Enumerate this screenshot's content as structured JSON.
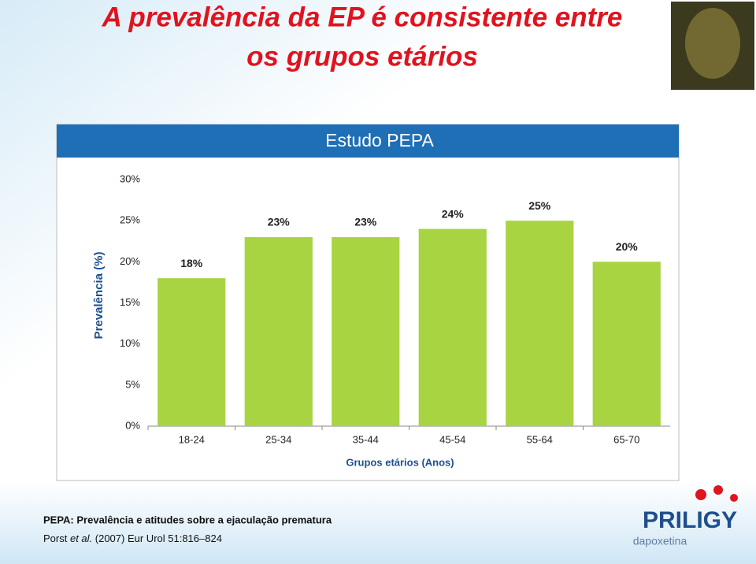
{
  "slide": {
    "title": [
      "A prevalência da EP é consistente entre",
      "os grupos etários"
    ],
    "footer": {
      "study": "PEPA: Prevalência e atitudes sobre a ejaculação prematura",
      "citation": [
        "Porst ",
        "et al.",
        " (2007) Eur Urol 51:816–824"
      ]
    },
    "logo": {
      "brand": "PRILIGY",
      "generic": "dapoxetina"
    }
  },
  "chart_data": {
    "type": "bar",
    "title": "Estudo PEPA",
    "x_label": "Grupos etários (Anos)",
    "y_label": "Prevalência (%)",
    "categories": [
      "18-24",
      "25-34",
      "35-44",
      "45-54",
      "55-64",
      "65-70"
    ],
    "values": [
      18,
      23,
      23,
      24,
      25,
      20
    ],
    "value_labels": [
      "18%",
      "23%",
      "23%",
      "24%",
      "25%",
      "20%"
    ],
    "color": "#a8d441",
    "ylim": [
      0,
      30
    ],
    "yticks": [
      {
        "value": 0,
        "label": "0%"
      },
      {
        "value": 5,
        "label": "5%"
      },
      {
        "value": 10,
        "label": "10%"
      },
      {
        "value": 15,
        "label": "15%"
      },
      {
        "value": 20,
        "label": "20%"
      },
      {
        "value": 25,
        "label": "25%"
      },
      {
        "value": 30,
        "label": "30%"
      }
    ],
    "grid": false
  }
}
